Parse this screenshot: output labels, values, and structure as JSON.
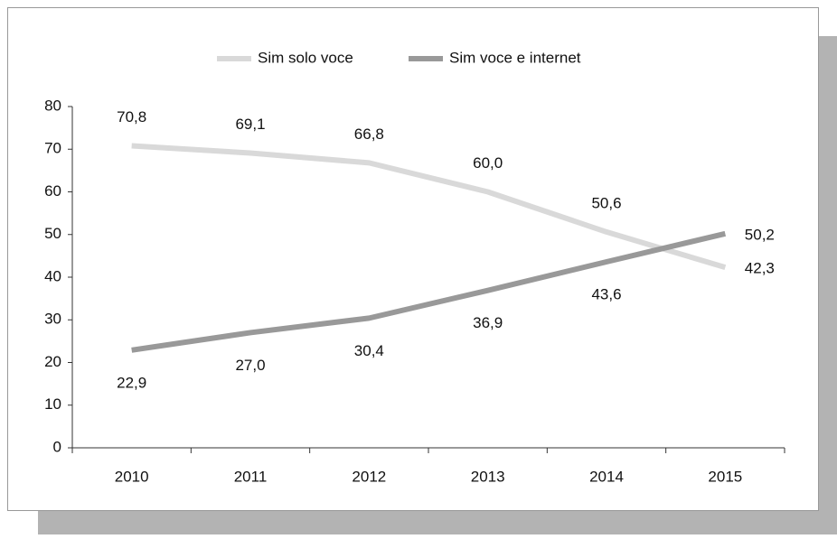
{
  "chart_data": {
    "type": "line",
    "categories": [
      "2010",
      "2011",
      "2012",
      "2013",
      "2014",
      "2015"
    ],
    "series": [
      {
        "name": "Sim solo voce",
        "color": "#d9d9d9",
        "values": [
          70.8,
          69.1,
          66.8,
          60.0,
          50.6,
          42.3
        ],
        "value_labels": [
          "70,8",
          "69,1",
          "66,8",
          "60,0",
          "50,6",
          "42,3"
        ]
      },
      {
        "name": "Sim voce e internet",
        "color": "#999999",
        "values": [
          22.9,
          27.0,
          30.4,
          36.9,
          43.6,
          50.2
        ],
        "value_labels": [
          "22,9",
          "27,0",
          "30,4",
          "36,9",
          "43,6",
          "50,2"
        ]
      }
    ],
    "ylim": [
      0,
      80
    ],
    "yticks": [
      0,
      10,
      20,
      30,
      40,
      50,
      60,
      70,
      80
    ],
    "legend": "top"
  }
}
